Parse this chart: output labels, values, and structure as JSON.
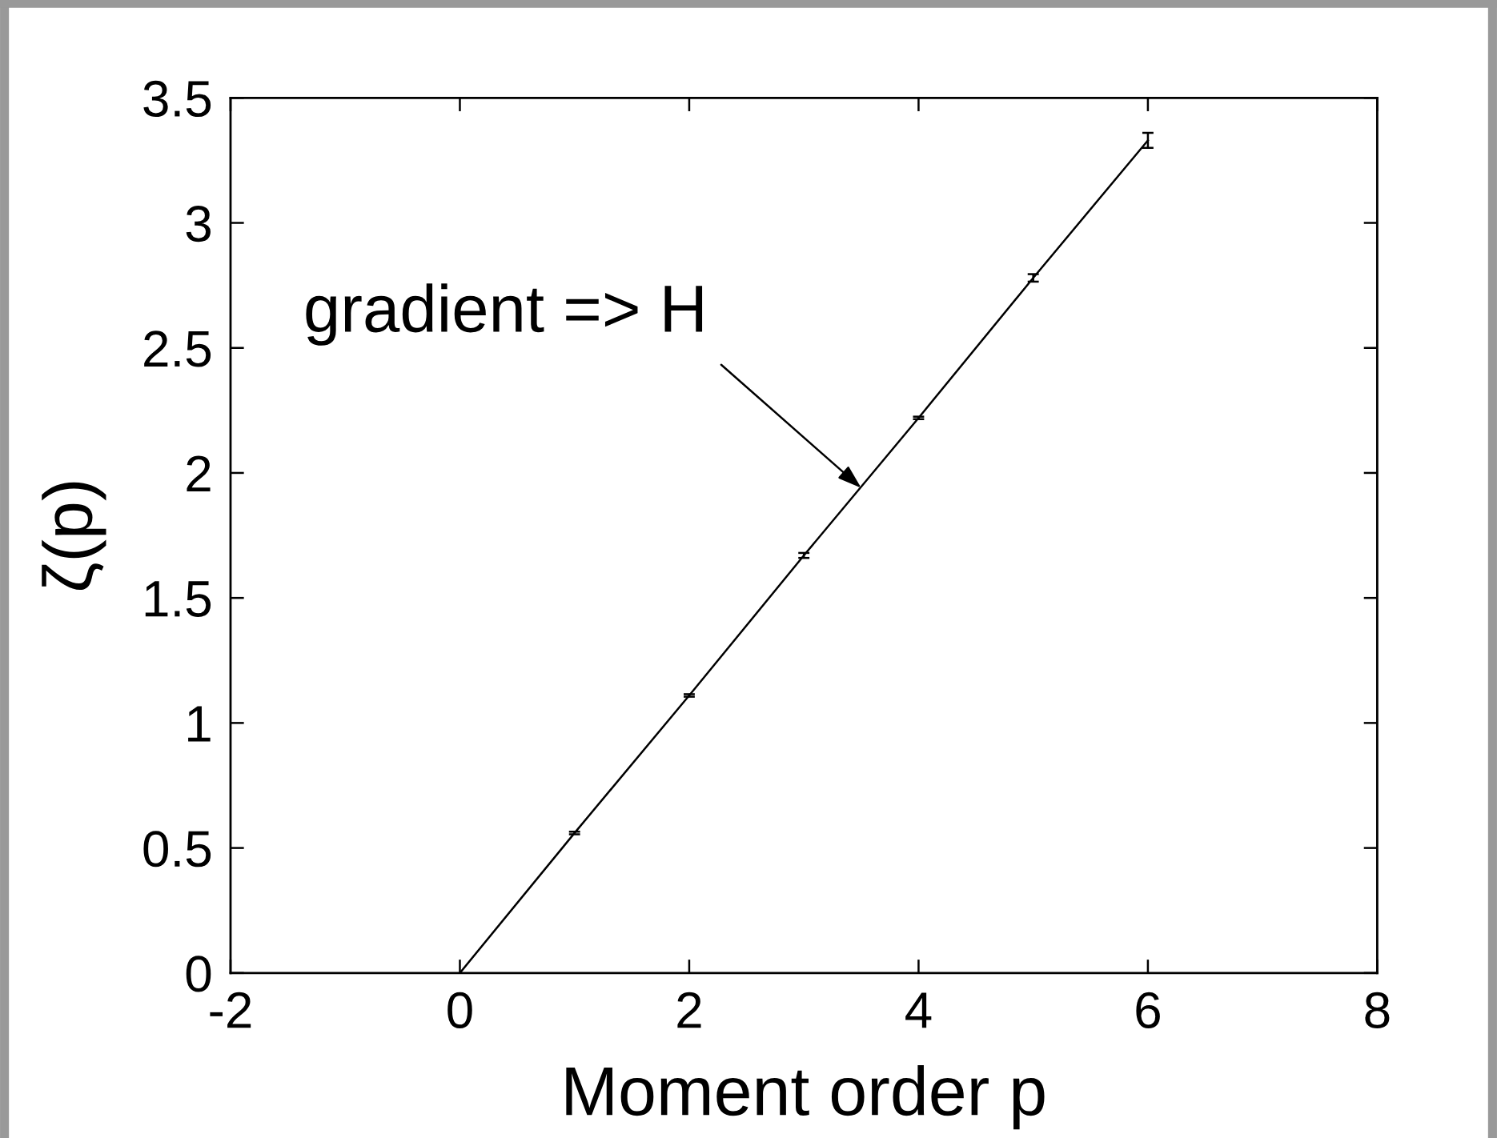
{
  "chart_data": {
    "type": "line",
    "xlabel": "Moment order p",
    "ylabel": "ζ(p)",
    "x": [
      0,
      1,
      2,
      3,
      4,
      5,
      6
    ],
    "series": [
      {
        "color": "#000000",
        "values": [
          0,
          0.56,
          1.11,
          1.67,
          2.22,
          2.78,
          3.33
        ],
        "errors": [
          null,
          0.005,
          0.005,
          0.01,
          0.005,
          0.015,
          0.03
        ]
      }
    ],
    "xlim": [
      -2,
      8
    ],
    "xticks": [
      -2,
      0,
      2,
      4,
      6,
      8
    ],
    "ylim": [
      0,
      3.5
    ],
    "yticks": [
      0,
      0.5,
      1,
      1.5,
      2,
      2.5,
      3,
      3.5
    ],
    "marker": "none",
    "line_style": "solid",
    "annotations": [
      {
        "text": "gradient => H",
        "x": 3.5,
        "y": 1.94
      }
    ]
  }
}
